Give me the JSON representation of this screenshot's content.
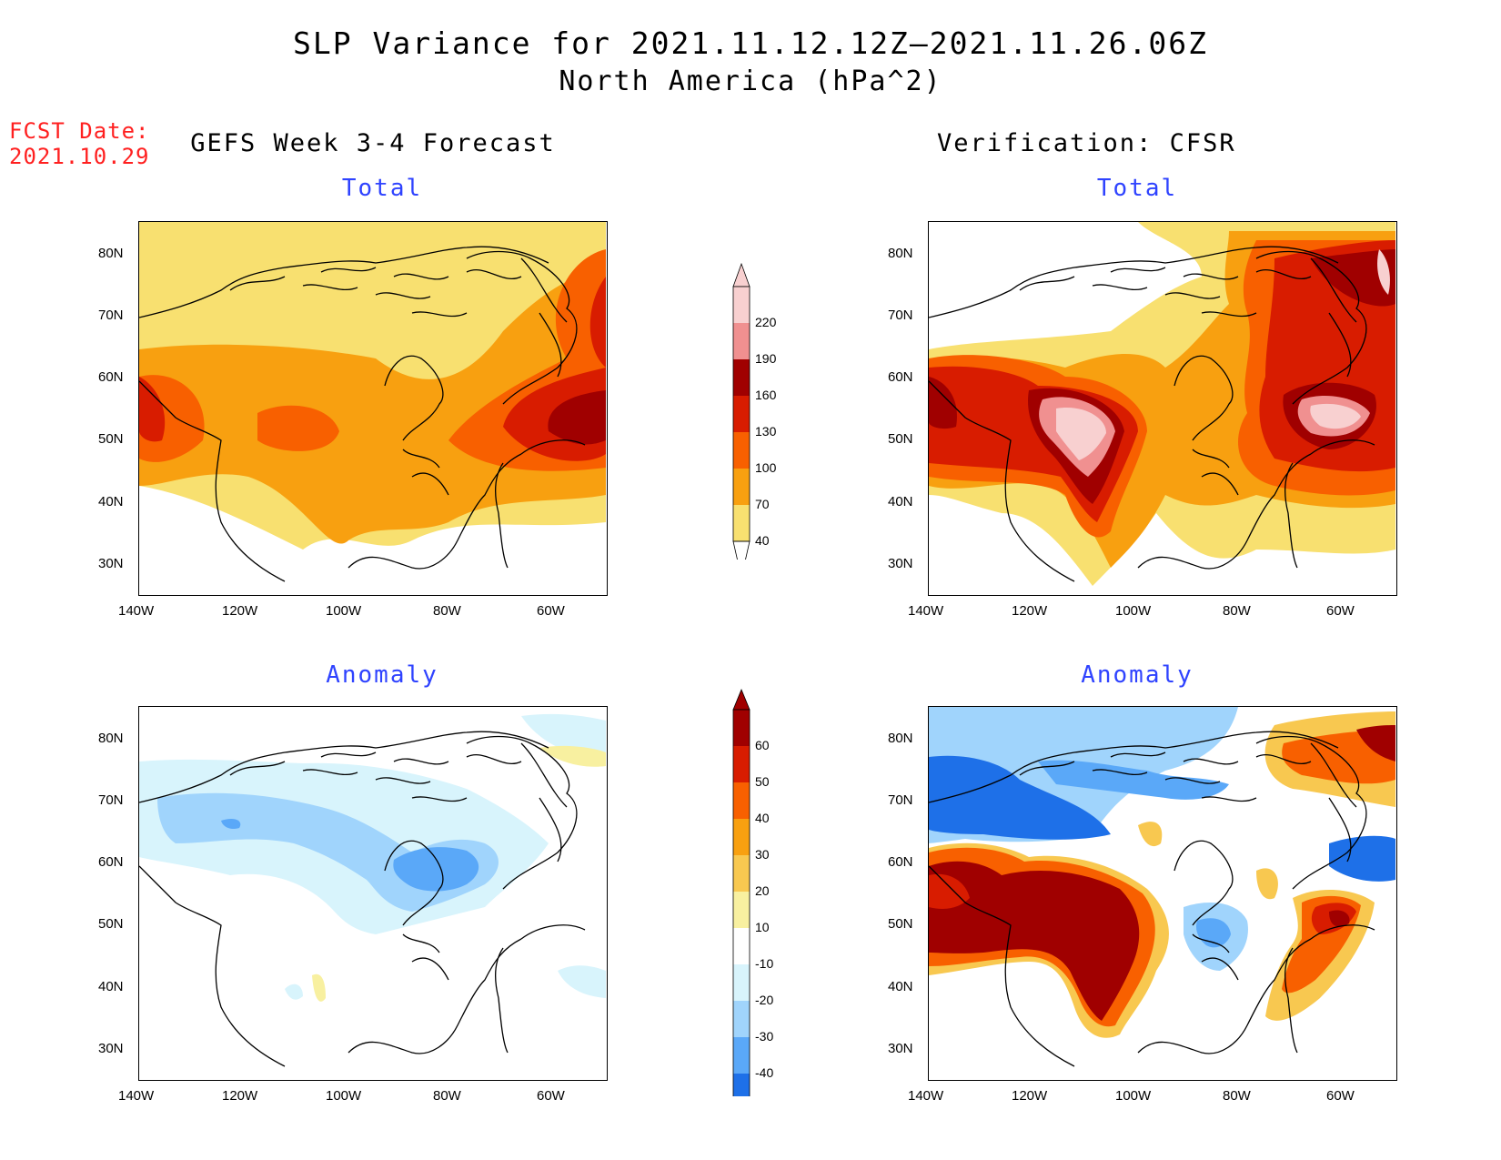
{
  "title": "SLP Variance for 2021.11.12.12Z–2021.11.26.06Z",
  "subtitle": "North America (hPa^2)",
  "fcst_label": "FCST Date:",
  "fcst_date": "2021.10.29",
  "left_column_title": "GEFS Week 3-4 Forecast",
  "right_column_title": "Verification: CFSR",
  "panels": {
    "top_left": {
      "title": "Total"
    },
    "top_right": {
      "title": "Total"
    },
    "bottom_left": {
      "title": "Anomaly"
    },
    "bottom_right": {
      "title": "Anomaly"
    }
  },
  "axes": {
    "lon_ticks": [
      "140W",
      "120W",
      "100W",
      "80W",
      "60W"
    ],
    "lat_ticks": [
      "80N",
      "70N",
      "60N",
      "50N",
      "40N",
      "30N"
    ]
  },
  "total_colorbar": {
    "labels": [
      "220",
      "190",
      "160",
      "130",
      "100",
      "70",
      "40"
    ],
    "colors": [
      "#f8d0d0",
      "#f09090",
      "#a00000",
      "#d81c00",
      "#f86000",
      "#f8a010",
      "#f8e070"
    ]
  },
  "anomaly_colorbar": {
    "labels": [
      "60",
      "50",
      "40",
      "30",
      "20",
      "10",
      "-10",
      "-20",
      "-30",
      "-40"
    ],
    "colors": [
      "#a00000",
      "#d81c00",
      "#f86000",
      "#f8a010",
      "#f8c850",
      "#f8f0a0",
      "#ffffff",
      "#d8f4fc",
      "#a0d4fc",
      "#5aa8f8",
      "#1e70e8"
    ]
  },
  "colors": {
    "title_blue": "#2f43ff",
    "fcst_red": "#ff2020"
  }
}
